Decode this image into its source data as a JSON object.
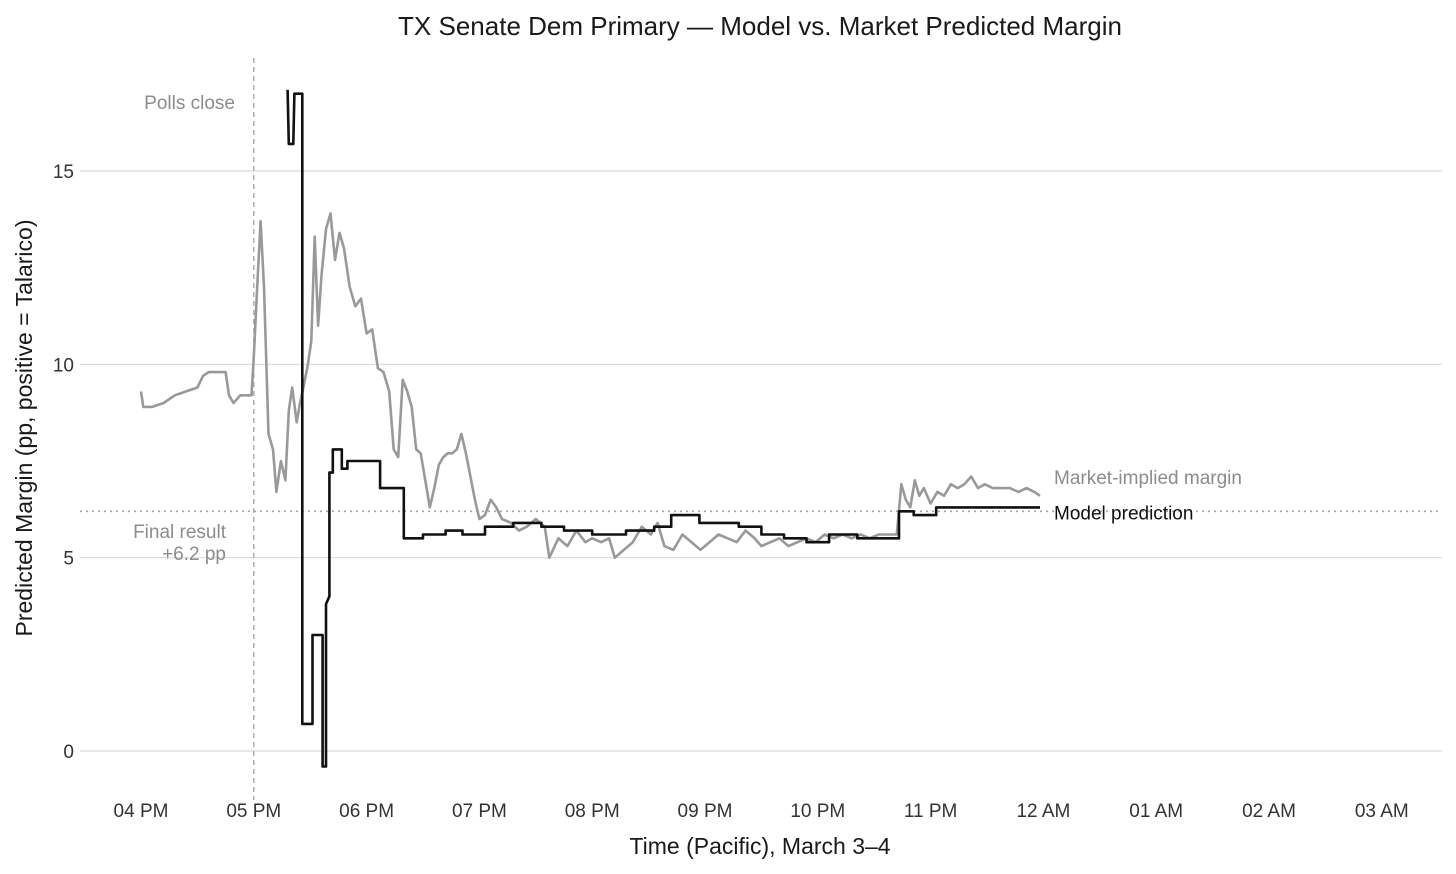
{
  "chart_data": {
    "type": "line",
    "title": "TX Senate Dem Primary — Model vs. Market Predicted Margin",
    "xlabel": "Time (Pacific), March 3–4",
    "ylabel": "Predicted Margin (pp, positive = Talarico)",
    "x_ticks": [
      "04 PM",
      "05 PM",
      "06 PM",
      "07 PM",
      "08 PM",
      "09 PM",
      "10 PM",
      "11 PM",
      "12 AM",
      "01 AM",
      "02 AM",
      "03 AM"
    ],
    "y_ticks": [
      0,
      5,
      10,
      15
    ],
    "xlim": [
      16.0,
      27.5
    ],
    "ylim": [
      -1,
      17.5
    ],
    "grid": "horizontal",
    "annotations": {
      "polls_close": {
        "label": "Polls close",
        "x": 17.0
      },
      "final_result": {
        "label_line1": "Final result",
        "label_line2": "+6.2 pp",
        "y": 6.2
      }
    },
    "series": [
      {
        "name": "Market-implied margin",
        "color": "#999999",
        "points": [
          [
            16.0,
            9.3
          ],
          [
            16.02,
            8.9
          ],
          [
            16.1,
            8.9
          ],
          [
            16.2,
            9.0
          ],
          [
            16.3,
            9.2
          ],
          [
            16.4,
            9.3
          ],
          [
            16.5,
            9.4
          ],
          [
            16.55,
            9.7
          ],
          [
            16.6,
            9.8
          ],
          [
            16.75,
            9.8
          ],
          [
            16.78,
            9.2
          ],
          [
            16.82,
            9.0
          ],
          [
            16.88,
            9.2
          ],
          [
            16.98,
            9.2
          ],
          [
            17.0,
            10.2
          ],
          [
            17.03,
            12.0
          ],
          [
            17.06,
            13.7
          ],
          [
            17.09,
            12.0
          ],
          [
            17.13,
            8.2
          ],
          [
            17.17,
            7.8
          ],
          [
            17.2,
            6.7
          ],
          [
            17.24,
            7.5
          ],
          [
            17.28,
            7.0
          ],
          [
            17.31,
            8.8
          ],
          [
            17.34,
            9.4
          ],
          [
            17.38,
            8.5
          ],
          [
            17.41,
            9.0
          ],
          [
            17.44,
            9.4
          ],
          [
            17.48,
            10.0
          ],
          [
            17.51,
            10.6
          ],
          [
            17.54,
            13.3
          ],
          [
            17.57,
            11.0
          ],
          [
            17.6,
            12.3
          ],
          [
            17.64,
            13.5
          ],
          [
            17.68,
            13.9
          ],
          [
            17.72,
            12.7
          ],
          [
            17.76,
            13.4
          ],
          [
            17.8,
            13.0
          ],
          [
            17.85,
            12.0
          ],
          [
            17.9,
            11.5
          ],
          [
            17.95,
            11.7
          ],
          [
            18.0,
            10.8
          ],
          [
            18.05,
            10.9
          ],
          [
            18.1,
            9.9
          ],
          [
            18.15,
            9.8
          ],
          [
            18.2,
            9.3
          ],
          [
            18.24,
            7.8
          ],
          [
            18.28,
            7.6
          ],
          [
            18.32,
            9.6
          ],
          [
            18.36,
            9.3
          ],
          [
            18.4,
            8.9
          ],
          [
            18.44,
            7.8
          ],
          [
            18.48,
            7.7
          ],
          [
            18.52,
            7.0
          ],
          [
            18.56,
            6.3
          ],
          [
            18.6,
            6.8
          ],
          [
            18.64,
            7.4
          ],
          [
            18.68,
            7.6
          ],
          [
            18.72,
            7.7
          ],
          [
            18.76,
            7.7
          ],
          [
            18.8,
            7.8
          ],
          [
            18.84,
            8.2
          ],
          [
            18.88,
            7.7
          ],
          [
            18.92,
            7.1
          ],
          [
            18.96,
            6.5
          ],
          [
            19.0,
            6.0
          ],
          [
            19.05,
            6.1
          ],
          [
            19.1,
            6.5
          ],
          [
            19.15,
            6.3
          ],
          [
            19.2,
            6.0
          ],
          [
            19.28,
            5.9
          ],
          [
            19.35,
            5.7
          ],
          [
            19.42,
            5.8
          ],
          [
            19.5,
            6.0
          ],
          [
            19.58,
            5.8
          ],
          [
            19.62,
            5.0
          ],
          [
            19.7,
            5.5
          ],
          [
            19.78,
            5.3
          ],
          [
            19.86,
            5.7
          ],
          [
            19.94,
            5.4
          ],
          [
            20.0,
            5.5
          ],
          [
            20.08,
            5.4
          ],
          [
            20.15,
            5.5
          ],
          [
            20.2,
            5.0
          ],
          [
            20.28,
            5.2
          ],
          [
            20.36,
            5.4
          ],
          [
            20.44,
            5.8
          ],
          [
            20.52,
            5.6
          ],
          [
            20.58,
            5.9
          ],
          [
            20.64,
            5.3
          ],
          [
            20.72,
            5.2
          ],
          [
            20.8,
            5.6
          ],
          [
            20.88,
            5.4
          ],
          [
            20.96,
            5.2
          ],
          [
            21.04,
            5.4
          ],
          [
            21.12,
            5.6
          ],
          [
            21.2,
            5.5
          ],
          [
            21.28,
            5.4
          ],
          [
            21.36,
            5.7
          ],
          [
            21.44,
            5.5
          ],
          [
            21.5,
            5.3
          ],
          [
            21.58,
            5.4
          ],
          [
            21.66,
            5.5
          ],
          [
            21.74,
            5.3
          ],
          [
            21.82,
            5.4
          ],
          [
            21.9,
            5.5
          ],
          [
            21.98,
            5.4
          ],
          [
            22.06,
            5.6
          ],
          [
            22.14,
            5.5
          ],
          [
            22.22,
            5.6
          ],
          [
            22.3,
            5.5
          ],
          [
            22.38,
            5.6
          ],
          [
            22.46,
            5.5
          ],
          [
            22.54,
            5.6
          ],
          [
            22.62,
            5.6
          ],
          [
            22.7,
            5.6
          ],
          [
            22.74,
            6.9
          ],
          [
            22.78,
            6.5
          ],
          [
            22.82,
            6.3
          ],
          [
            22.86,
            7.0
          ],
          [
            22.9,
            6.6
          ],
          [
            22.94,
            6.8
          ],
          [
            23.0,
            6.4
          ],
          [
            23.06,
            6.7
          ],
          [
            23.12,
            6.6
          ],
          [
            23.18,
            6.9
          ],
          [
            23.24,
            6.8
          ],
          [
            23.3,
            6.9
          ],
          [
            23.36,
            7.1
          ],
          [
            23.42,
            6.8
          ],
          [
            23.48,
            6.9
          ],
          [
            23.55,
            6.8
          ],
          [
            23.62,
            6.8
          ],
          [
            23.7,
            6.8
          ],
          [
            23.78,
            6.7
          ],
          [
            23.85,
            6.8
          ],
          [
            23.92,
            6.7
          ],
          [
            23.97,
            6.6
          ]
        ]
      },
      {
        "name": "Model prediction",
        "color": "#111111",
        "points": [
          [
            17.3,
            17.1
          ],
          [
            17.31,
            15.7
          ],
          [
            17.35,
            15.7
          ],
          [
            17.36,
            17.0
          ],
          [
            17.43,
            17.0
          ],
          [
            17.43,
            0.7
          ],
          [
            17.52,
            0.7
          ],
          [
            17.52,
            3.0
          ],
          [
            17.61,
            3.0
          ],
          [
            17.61,
            -0.4
          ],
          [
            17.64,
            -0.4
          ],
          [
            17.64,
            3.8
          ],
          [
            17.67,
            4.0
          ],
          [
            17.67,
            7.2
          ],
          [
            17.7,
            7.2
          ],
          [
            17.7,
            7.8
          ],
          [
            17.78,
            7.8
          ],
          [
            17.78,
            7.3
          ],
          [
            17.83,
            7.3
          ],
          [
            17.83,
            7.5
          ],
          [
            18.12,
            7.5
          ],
          [
            18.12,
            6.8
          ],
          [
            18.33,
            6.8
          ],
          [
            18.33,
            5.5
          ],
          [
            18.5,
            5.5
          ],
          [
            18.5,
            5.6
          ],
          [
            18.7,
            5.6
          ],
          [
            18.7,
            5.7
          ],
          [
            18.85,
            5.7
          ],
          [
            18.85,
            5.6
          ],
          [
            19.05,
            5.6
          ],
          [
            19.05,
            5.8
          ],
          [
            19.3,
            5.8
          ],
          [
            19.3,
            5.9
          ],
          [
            19.55,
            5.9
          ],
          [
            19.55,
            5.8
          ],
          [
            19.75,
            5.8
          ],
          [
            19.75,
            5.7
          ],
          [
            20.0,
            5.7
          ],
          [
            20.0,
            5.6
          ],
          [
            20.3,
            5.6
          ],
          [
            20.3,
            5.7
          ],
          [
            20.55,
            5.7
          ],
          [
            20.55,
            5.8
          ],
          [
            20.7,
            5.8
          ],
          [
            20.7,
            6.1
          ],
          [
            20.95,
            6.1
          ],
          [
            20.95,
            5.9
          ],
          [
            21.3,
            5.9
          ],
          [
            21.3,
            5.8
          ],
          [
            21.5,
            5.8
          ],
          [
            21.5,
            5.6
          ],
          [
            21.7,
            5.6
          ],
          [
            21.7,
            5.5
          ],
          [
            21.9,
            5.5
          ],
          [
            21.9,
            5.4
          ],
          [
            22.1,
            5.4
          ],
          [
            22.1,
            5.6
          ],
          [
            22.35,
            5.6
          ],
          [
            22.35,
            5.5
          ],
          [
            22.72,
            5.5
          ],
          [
            22.72,
            6.2
          ],
          [
            22.85,
            6.2
          ],
          [
            22.85,
            6.1
          ],
          [
            23.05,
            6.1
          ],
          [
            23.05,
            6.3
          ],
          [
            23.45,
            6.3
          ],
          [
            23.45,
            6.3
          ],
          [
            23.97,
            6.3
          ]
        ]
      }
    ]
  }
}
